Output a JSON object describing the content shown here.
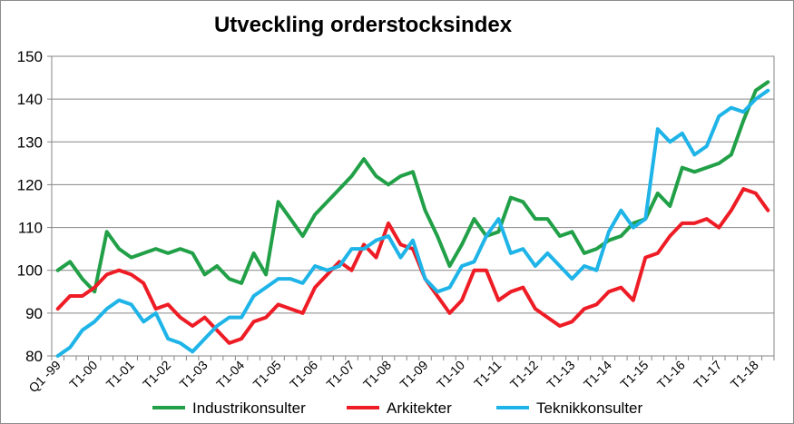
{
  "chart_data": {
    "type": "line",
    "title": "Utveckling orderstocksindex",
    "xlabel": "",
    "ylabel": "",
    "ylim": [
      80,
      150
    ],
    "yticks": [
      80,
      90,
      100,
      110,
      120,
      130,
      140,
      150
    ],
    "grid": "horizontal",
    "legend": "bottom",
    "x_tick_labels": [
      "Q1 -99",
      "T1-00",
      "T1-01",
      "T1-02",
      "T1-03",
      "T1-04",
      "T1-05",
      "T1-06",
      "T1-07",
      "T1-08",
      "T1-09",
      "T1-10",
      "T1-11",
      "T1-12",
      "T1-13",
      "T1-14",
      "T1-15",
      "T1-16",
      "T1-17",
      "T1-18"
    ],
    "series": [
      {
        "name": "Industrikonsulter",
        "color": "#21a048",
        "values": [
          100,
          102,
          98,
          95,
          109,
          105,
          103,
          104,
          105,
          104,
          105,
          104,
          99,
          101,
          98,
          97,
          104,
          99,
          116,
          112,
          108,
          113,
          116,
          119,
          122,
          126,
          122,
          120,
          122,
          123,
          114,
          108,
          101,
          106,
          112,
          108,
          109,
          117,
          116,
          112,
          112,
          108,
          109,
          104,
          105,
          107,
          108,
          111,
          112,
          118,
          115,
          124,
          123,
          124,
          125,
          127,
          135,
          142,
          144
        ]
      },
      {
        "name": "Arkitekter",
        "color": "#ee1c25",
        "values": [
          91,
          94,
          94,
          96,
          99,
          100,
          99,
          97,
          91,
          92,
          89,
          87,
          89,
          86,
          83,
          84,
          88,
          89,
          92,
          91,
          90,
          96,
          99,
          102,
          100,
          106,
          103,
          111,
          106,
          105,
          98,
          94,
          90,
          93,
          100,
          100,
          93,
          95,
          96,
          91,
          89,
          87,
          88,
          91,
          92,
          95,
          96,
          93,
          103,
          104,
          108,
          111,
          111,
          112,
          110,
          114,
          119,
          118,
          114
        ]
      },
      {
        "name": "Teknikkonsulter",
        "color": "#1fb4e8",
        "values": [
          80,
          82,
          86,
          88,
          91,
          93,
          92,
          88,
          90,
          84,
          83,
          81,
          84,
          87,
          89,
          89,
          94,
          96,
          98,
          98,
          97,
          101,
          100,
          101,
          105,
          105,
          107,
          108,
          103,
          107,
          98,
          95,
          96,
          101,
          102,
          108,
          112,
          104,
          105,
          101,
          104,
          101,
          98,
          101,
          100,
          109,
          114,
          110,
          112,
          133,
          130,
          132,
          127,
          129,
          136,
          138,
          137,
          140,
          142
        ]
      }
    ]
  }
}
